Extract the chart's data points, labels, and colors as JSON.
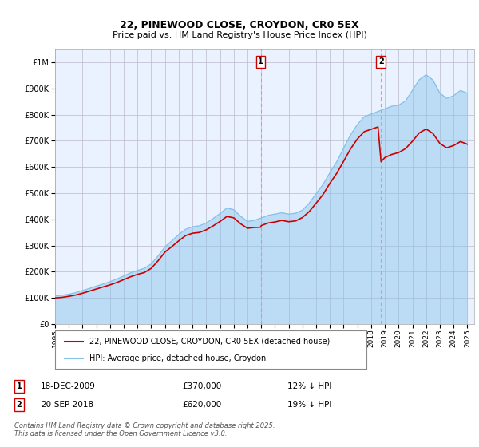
{
  "title": "22, PINEWOOD CLOSE, CROYDON, CR0 5EX",
  "subtitle": "Price paid vs. HM Land Registry's House Price Index (HPI)",
  "legend_line1": "22, PINEWOOD CLOSE, CROYDON, CR0 5EX (detached house)",
  "legend_line2": "HPI: Average price, detached house, Croydon",
  "footnote": "Contains HM Land Registry data © Crown copyright and database right 2025.\nThis data is licensed under the Open Government Licence v3.0.",
  "marker1_date": "18-DEC-2009",
  "marker1_price": "£370,000",
  "marker1_hpi": "12% ↓ HPI",
  "marker1_label": "1",
  "marker1_x": 2009.96,
  "marker2_date": "20-SEP-2018",
  "marker2_price": "£620,000",
  "marker2_hpi": "19% ↓ HPI",
  "marker2_label": "2",
  "marker2_x": 2018.72,
  "hpi_color": "#85C1E9",
  "price_color": "#CC0000",
  "vline_color": "#FF8888",
  "background_color": "#FFFFFF",
  "plot_bg_color": "#EAF2FF",
  "grid_color": "#BBBBCC",
  "ylim": [
    0,
    1050000
  ],
  "xlim_start": 1995,
  "xlim_end": 2025.5,
  "hpi_years": [
    1995.0,
    1995.5,
    1996.0,
    1996.5,
    1997.0,
    1997.5,
    1998.0,
    1998.5,
    1999.0,
    1999.5,
    2000.0,
    2000.5,
    2001.0,
    2001.5,
    2002.0,
    2002.5,
    2003.0,
    2003.5,
    2004.0,
    2004.5,
    2005.0,
    2005.5,
    2006.0,
    2006.5,
    2007.0,
    2007.5,
    2008.0,
    2008.5,
    2009.0,
    2009.5,
    2010.0,
    2010.5,
    2011.0,
    2011.5,
    2012.0,
    2012.5,
    2013.0,
    2013.5,
    2014.0,
    2014.5,
    2015.0,
    2015.5,
    2016.0,
    2016.5,
    2017.0,
    2017.5,
    2018.0,
    2018.5,
    2019.0,
    2019.5,
    2020.0,
    2020.5,
    2021.0,
    2021.5,
    2022.0,
    2022.5,
    2023.0,
    2023.5,
    2024.0,
    2024.5,
    2025.0
  ],
  "hpi_values": [
    108000,
    110000,
    114000,
    120000,
    128000,
    136000,
    145000,
    153000,
    162000,
    172000,
    184000,
    196000,
    205000,
    213000,
    230000,
    260000,
    295000,
    318000,
    342000,
    362000,
    372000,
    375000,
    386000,
    403000,
    422000,
    443000,
    437000,
    412000,
    392000,
    396000,
    405000,
    415000,
    420000,
    425000,
    420000,
    423000,
    435000,
    462000,
    498000,
    533000,
    578000,
    620000,
    672000,
    722000,
    762000,
    792000,
    802000,
    812000,
    822000,
    832000,
    836000,
    852000,
    892000,
    933000,
    952000,
    932000,
    882000,
    862000,
    872000,
    892000,
    882000
  ],
  "price_years": [
    1995.0,
    1995.5,
    1996.0,
    1996.5,
    1997.0,
    1997.5,
    1998.0,
    1998.5,
    1999.0,
    1999.5,
    2000.0,
    2000.5,
    2001.0,
    2001.5,
    2002.0,
    2002.5,
    2003.0,
    2003.5,
    2004.0,
    2004.5,
    2005.0,
    2005.5,
    2006.0,
    2006.5,
    2007.0,
    2007.5,
    2008.0,
    2008.5,
    2009.0,
    2009.5,
    2009.96,
    2010.0,
    2010.5,
    2011.0,
    2011.5,
    2012.0,
    2012.5,
    2013.0,
    2013.5,
    2014.0,
    2014.5,
    2015.0,
    2015.5,
    2016.0,
    2016.5,
    2017.0,
    2017.5,
    2018.0,
    2018.5,
    2018.72,
    2019.0,
    2019.5,
    2020.0,
    2020.5,
    2021.0,
    2021.5,
    2022.0,
    2022.5,
    2023.0,
    2023.5,
    2024.0,
    2024.5,
    2025.0
  ],
  "price_values": [
    100000,
    102000,
    106000,
    111000,
    118000,
    126000,
    134000,
    142000,
    150000,
    159000,
    170000,
    181000,
    190000,
    197000,
    213000,
    242000,
    275000,
    296000,
    318000,
    338000,
    347000,
    350000,
    360000,
    375000,
    392000,
    411000,
    406000,
    383000,
    366000,
    369000,
    370000,
    376000,
    386000,
    390000,
    396000,
    391000,
    394000,
    407000,
    430000,
    462000,
    495000,
    538000,
    576000,
    622000,
    669000,
    707000,
    735000,
    744000,
    753000,
    620000,
    636000,
    648000,
    655000,
    670000,
    698000,
    730000,
    745000,
    728000,
    690000,
    673000,
    682000,
    697000,
    687000
  ]
}
